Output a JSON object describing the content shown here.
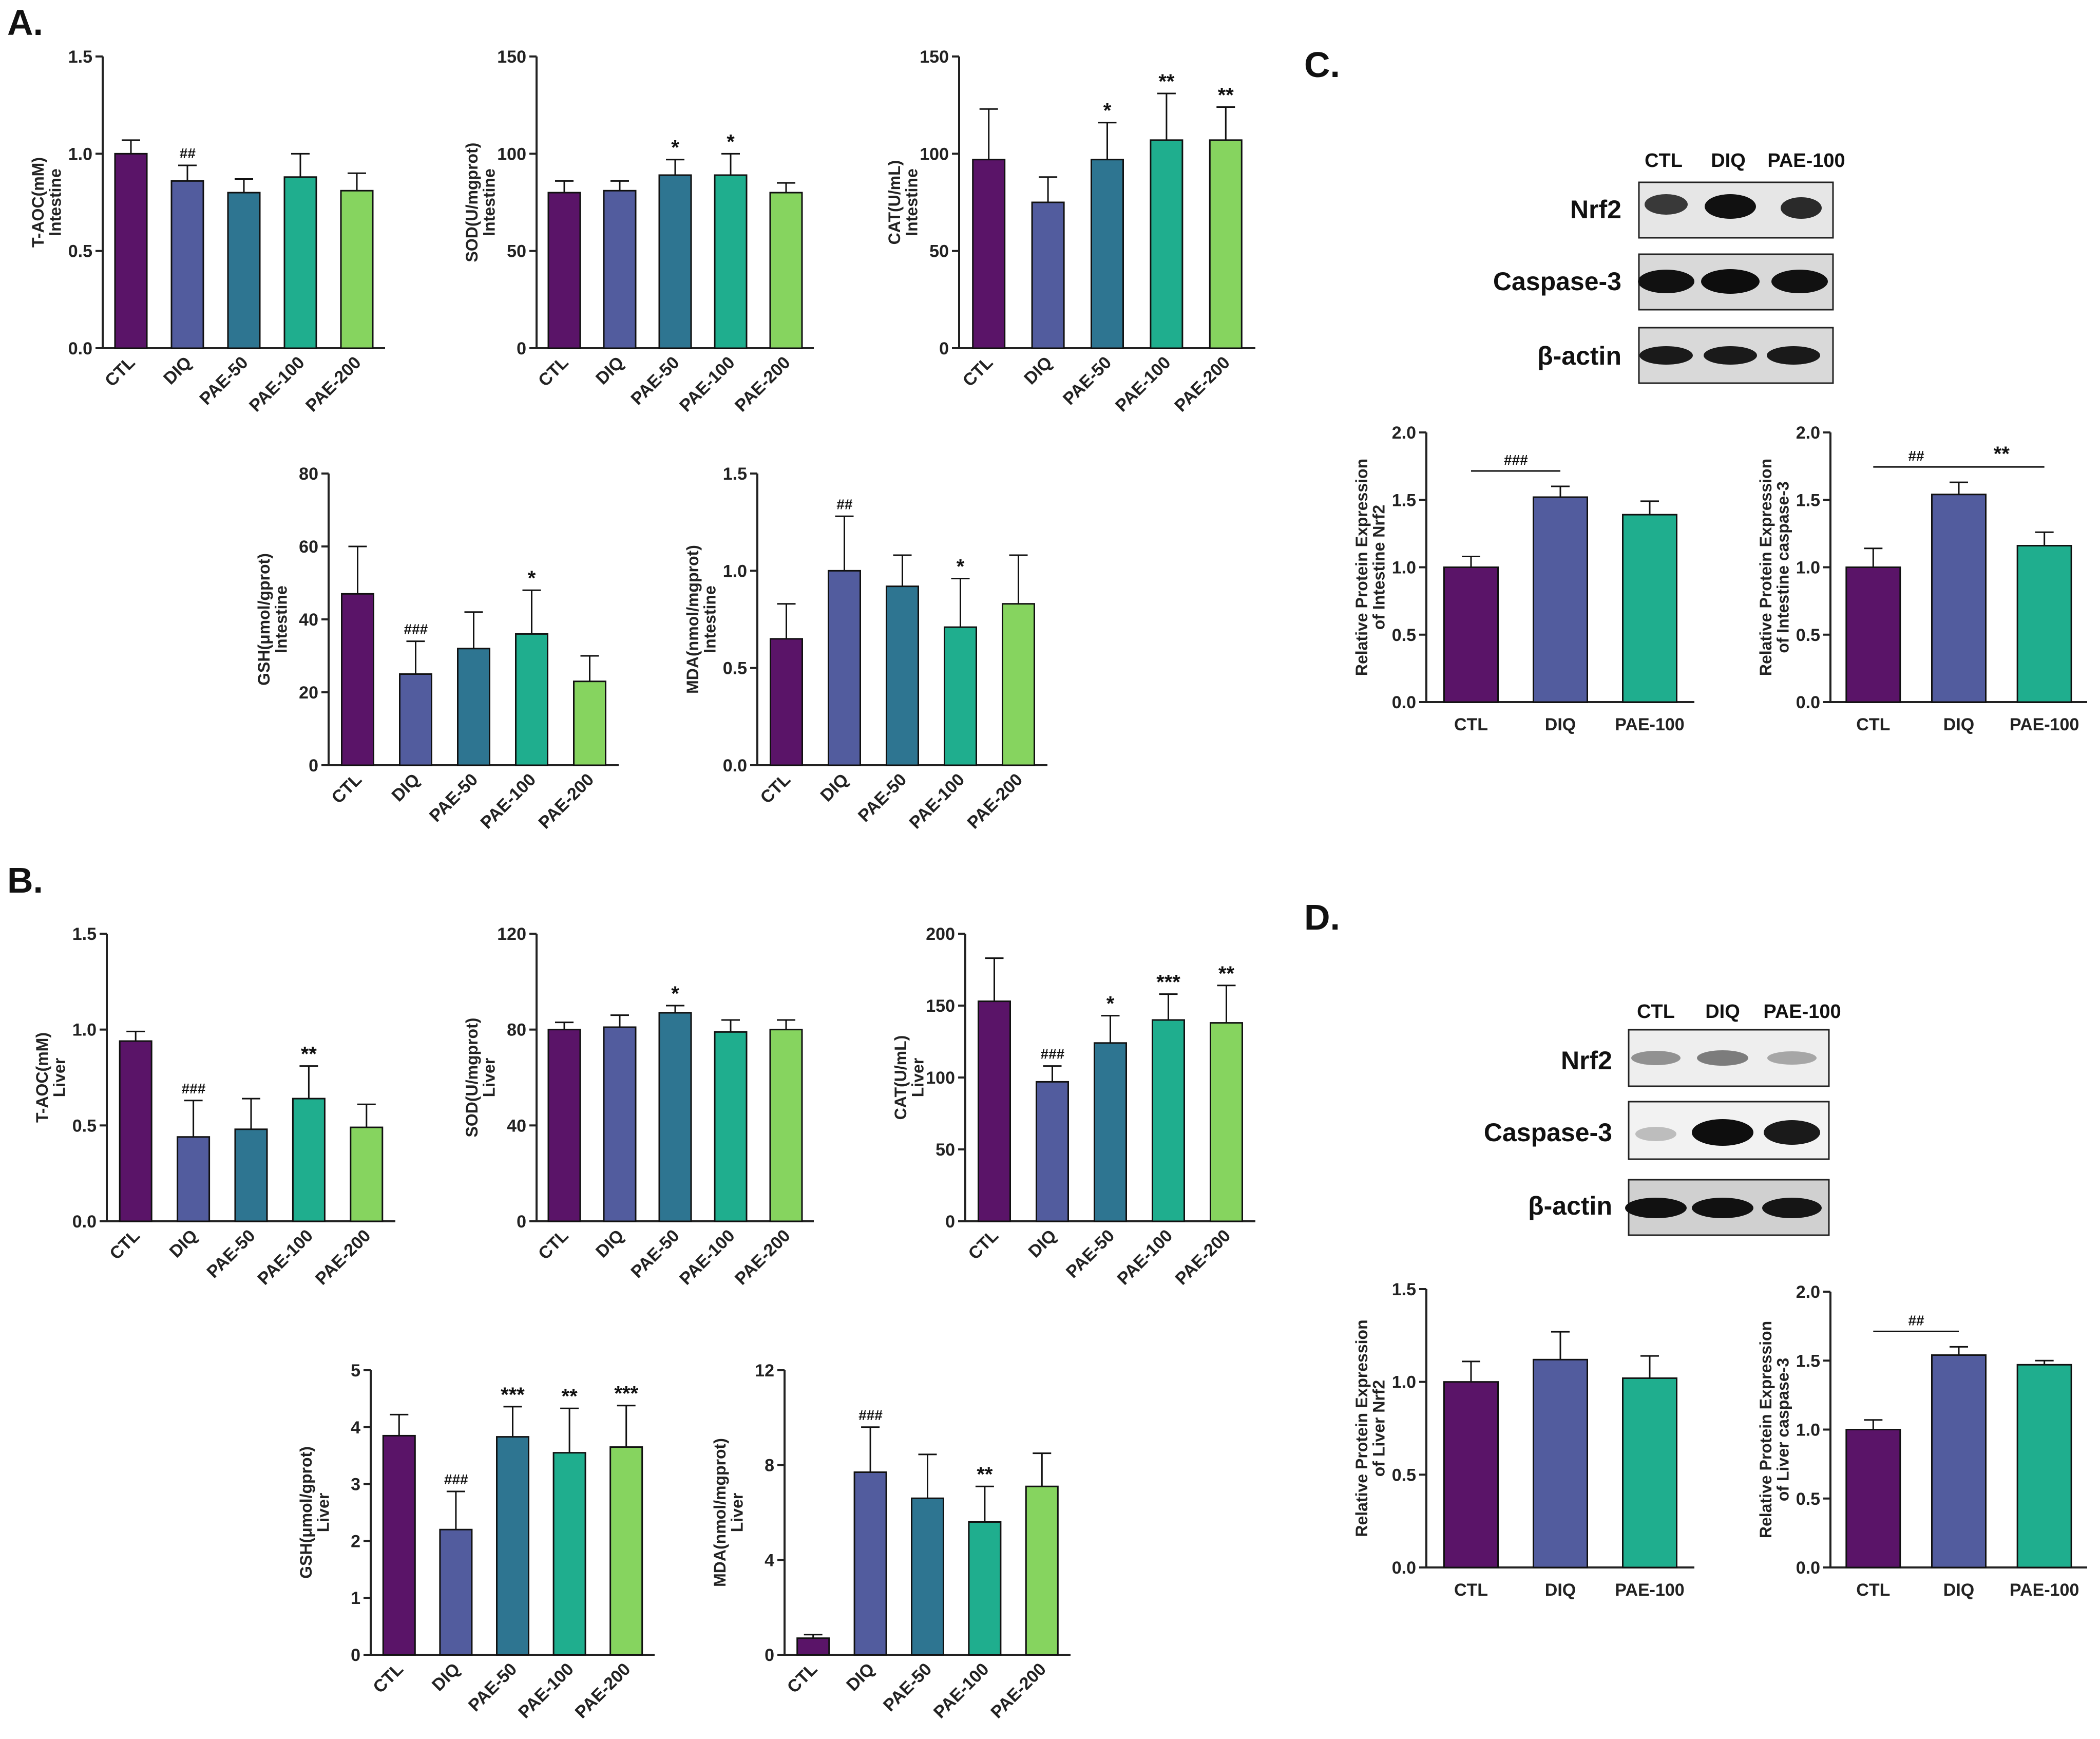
{
  "panels": [
    {
      "id": "A",
      "label": "A."
    },
    {
      "id": "B",
      "label": "B."
    },
    {
      "id": "C",
      "label": "C."
    },
    {
      "id": "D",
      "label": "D."
    }
  ],
  "colors": {
    "CTL": "#5a1468",
    "DIQ": "#525c9e",
    "PAE-50": "#2e7591",
    "PAE-100": "#1fae8e",
    "PAE-200": "#86d45f",
    "axis": "#222222"
  },
  "blots": [
    {
      "id": "C",
      "lanes": [
        "CTL",
        "DIQ",
        "PAE-100"
      ],
      "proteins": [
        "Nrf2",
        "Caspase-3",
        "β-actin"
      ]
    },
    {
      "id": "D",
      "lanes": [
        "CTL",
        "DIQ",
        "PAE-100"
      ],
      "proteins": [
        "Nrf2",
        "Caspase-3",
        "β-actin"
      ]
    }
  ],
  "chart_data": [
    {
      "id": "A1",
      "panel": "A",
      "type": "bar",
      "categories": [
        "CTL",
        "DIQ",
        "PAE-50",
        "PAE-100",
        "PAE-200"
      ],
      "values": [
        1.0,
        0.86,
        0.8,
        0.88,
        0.81
      ],
      "errors": [
        0.07,
        0.08,
        0.07,
        0.12,
        0.09
      ],
      "annotations": [
        "",
        "##",
        "",
        "",
        ""
      ],
      "ylabel": [
        "T-AOC(mM)",
        "Intestine"
      ],
      "ylim": [
        0,
        1.5
      ],
      "yticks": [
        "0.0",
        "0.5",
        "1.0",
        "1.5"
      ]
    },
    {
      "id": "A2",
      "panel": "A",
      "type": "bar",
      "categories": [
        "CTL",
        "DIQ",
        "PAE-50",
        "PAE-100",
        "PAE-200"
      ],
      "values": [
        80,
        81,
        89,
        89,
        80
      ],
      "errors": [
        6,
        5,
        8,
        11,
        5
      ],
      "annotations": [
        "",
        "",
        "*",
        "*",
        ""
      ],
      "ylabel": [
        "SOD(U/mgprot)",
        "Intestine"
      ],
      "ylim": [
        0,
        150
      ],
      "yticks": [
        "0",
        "50",
        "100",
        "150"
      ]
    },
    {
      "id": "A3",
      "panel": "A",
      "type": "bar",
      "categories": [
        "CTL",
        "DIQ",
        "PAE-50",
        "PAE-100",
        "PAE-200"
      ],
      "values": [
        97,
        75,
        97,
        107,
        107
      ],
      "errors": [
        26,
        13,
        19,
        24,
        17
      ],
      "annotations": [
        "",
        "",
        "*",
        "**",
        "**"
      ],
      "ylabel": [
        "CAT(U/mL)",
        "Intestine"
      ],
      "ylim": [
        0,
        150
      ],
      "yticks": [
        "0",
        "50",
        "100",
        "150"
      ]
    },
    {
      "id": "A4",
      "panel": "A",
      "type": "bar",
      "categories": [
        "CTL",
        "DIQ",
        "PAE-50",
        "PAE-100",
        "PAE-200"
      ],
      "values": [
        47,
        25,
        32,
        36,
        23
      ],
      "errors": [
        13,
        9,
        10,
        12,
        7
      ],
      "annotations": [
        "",
        "###",
        "",
        "*",
        ""
      ],
      "ylabel": [
        "GSH(μmol/gprot)",
        "Intestine"
      ],
      "ylim": [
        0,
        80
      ],
      "yticks": [
        "0",
        "20",
        "40",
        "60",
        "80"
      ]
    },
    {
      "id": "A5",
      "panel": "A",
      "type": "bar",
      "categories": [
        "CTL",
        "DIQ",
        "PAE-50",
        "PAE-100",
        "PAE-200"
      ],
      "values": [
        0.65,
        1.0,
        0.92,
        0.71,
        0.83
      ],
      "errors": [
        0.18,
        0.28,
        0.16,
        0.25,
        0.25
      ],
      "annotations": [
        "",
        "##",
        "",
        "*",
        ""
      ],
      "ylabel": [
        "MDA(nmol/mgprot)",
        "Intestine"
      ],
      "ylim": [
        0,
        1.5
      ],
      "yticks": [
        "0.0",
        "0.5",
        "1.0",
        "1.5"
      ]
    },
    {
      "id": "B1",
      "panel": "B",
      "type": "bar",
      "categories": [
        "CTL",
        "DIQ",
        "PAE-50",
        "PAE-100",
        "PAE-200"
      ],
      "values": [
        0.94,
        0.44,
        0.48,
        0.64,
        0.49
      ],
      "errors": [
        0.05,
        0.19,
        0.16,
        0.17,
        0.12
      ],
      "annotations": [
        "",
        "###",
        "",
        "**",
        ""
      ],
      "ylabel": [
        "T-AOC(mM)",
        "Liver"
      ],
      "ylim": [
        0,
        1.5
      ],
      "yticks": [
        "0.0",
        "0.5",
        "1.0",
        "1.5"
      ]
    },
    {
      "id": "B2",
      "panel": "B",
      "type": "bar",
      "categories": [
        "CTL",
        "DIQ",
        "PAE-50",
        "PAE-100",
        "PAE-200"
      ],
      "values": [
        80,
        81,
        87,
        79,
        80
      ],
      "errors": [
        3,
        5,
        3,
        5,
        4
      ],
      "annotations": [
        "",
        "",
        "*",
        "",
        ""
      ],
      "ylabel": [
        "SOD(U/mgprot)",
        "Liver"
      ],
      "ylim": [
        0,
        120
      ],
      "yticks": [
        "0",
        "40",
        "80",
        "120"
      ]
    },
    {
      "id": "B3",
      "panel": "B",
      "type": "bar",
      "categories": [
        "CTL",
        "DIQ",
        "PAE-50",
        "PAE-100",
        "PAE-200"
      ],
      "values": [
        153,
        97,
        124,
        140,
        138
      ],
      "errors": [
        30,
        11,
        19,
        18,
        26
      ],
      "annotations": [
        "",
        "###",
        "*",
        "***",
        "**"
      ],
      "ylabel": [
        "CAT(U/mL)",
        "Liver"
      ],
      "ylim": [
        0,
        200
      ],
      "yticks": [
        "0",
        "50",
        "100",
        "150",
        "200"
      ]
    },
    {
      "id": "B4",
      "panel": "B",
      "type": "bar",
      "categories": [
        "CTL",
        "DIQ",
        "PAE-50",
        "PAE-100",
        "PAE-200"
      ],
      "values": [
        3.85,
        2.2,
        3.83,
        3.55,
        3.65
      ],
      "errors": [
        0.37,
        0.67,
        0.53,
        0.78,
        0.73
      ],
      "annotations": [
        "",
        "###",
        "***",
        "**",
        "***"
      ],
      "ylabel": [
        "GSH(μmol/gprot)",
        "Liver"
      ],
      "ylim": [
        0,
        5
      ],
      "yticks": [
        "0",
        "1",
        "2",
        "3",
        "4",
        "5"
      ]
    },
    {
      "id": "B5",
      "panel": "B",
      "type": "bar",
      "categories": [
        "CTL",
        "DIQ",
        "PAE-50",
        "PAE-100",
        "PAE-200"
      ],
      "values": [
        0.7,
        7.7,
        6.6,
        5.6,
        7.1
      ],
      "errors": [
        0.15,
        1.9,
        1.85,
        1.5,
        1.4
      ],
      "annotations": [
        "",
        "###",
        "",
        "**",
        ""
      ],
      "ylabel": [
        "MDA(nmol/mgprot)",
        "Liver"
      ],
      "ylim": [
        0,
        12
      ],
      "yticks": [
        "0",
        "4",
        "8",
        "12"
      ]
    },
    {
      "id": "C1",
      "panel": "C",
      "type": "bar",
      "categories": [
        "CTL",
        "DIQ",
        "PAE-100"
      ],
      "values": [
        1.0,
        1.52,
        1.39
      ],
      "errors": [
        0.08,
        0.08,
        0.1
      ],
      "annotations": [
        "",
        "",
        ""
      ],
      "brackets": [
        {
          "from": 0,
          "to": 1,
          "label": "###"
        }
      ],
      "ylabel": [
        "Relative Protein Expression",
        "of Intestine Nrf2"
      ],
      "ylim": [
        0,
        2.0
      ],
      "yticks": [
        "0.0",
        "0.5",
        "1.0",
        "1.5",
        "2.0"
      ]
    },
    {
      "id": "C2",
      "panel": "C",
      "type": "bar",
      "categories": [
        "CTL",
        "DIQ",
        "PAE-100"
      ],
      "values": [
        1.0,
        1.54,
        1.16
      ],
      "errors": [
        0.14,
        0.09,
        0.1
      ],
      "annotations": [
        "",
        "",
        ""
      ],
      "brackets": [
        {
          "from": 0,
          "to": 1,
          "label": "##"
        },
        {
          "from": 1,
          "to": 2,
          "label": "**"
        }
      ],
      "ylabel": [
        "Relative Protein Expression",
        "of Intestine caspase-3"
      ],
      "ylim": [
        0,
        2.0
      ],
      "yticks": [
        "0.0",
        "0.5",
        "1.0",
        "1.5",
        "2.0"
      ]
    },
    {
      "id": "D1",
      "panel": "D",
      "type": "bar",
      "categories": [
        "CTL",
        "DIQ",
        "PAE-100"
      ],
      "values": [
        1.0,
        1.12,
        1.02
      ],
      "errors": [
        0.11,
        0.15,
        0.12
      ],
      "annotations": [
        "",
        "",
        ""
      ],
      "brackets": [],
      "ylabel": [
        "Relative Protein Expression",
        "of Liver Nrf2"
      ],
      "ylim": [
        0,
        1.5
      ],
      "yticks": [
        "0.0",
        "0.5",
        "1.0",
        "1.5"
      ]
    },
    {
      "id": "D2",
      "panel": "D",
      "type": "bar",
      "categories": [
        "CTL",
        "DIQ",
        "PAE-100"
      ],
      "values": [
        1.0,
        1.54,
        1.47
      ],
      "errors": [
        0.07,
        0.06,
        0.03
      ],
      "annotations": [
        "",
        "",
        ""
      ],
      "brackets": [
        {
          "from": 0,
          "to": 1,
          "label": "##"
        }
      ],
      "ylabel": [
        "Relative Protein Expression",
        "of Liver caspase-3"
      ],
      "ylim": [
        0,
        2.0
      ],
      "yticks": [
        "0.0",
        "0.5",
        "1.0",
        "1.5",
        "2.0"
      ]
    }
  ]
}
